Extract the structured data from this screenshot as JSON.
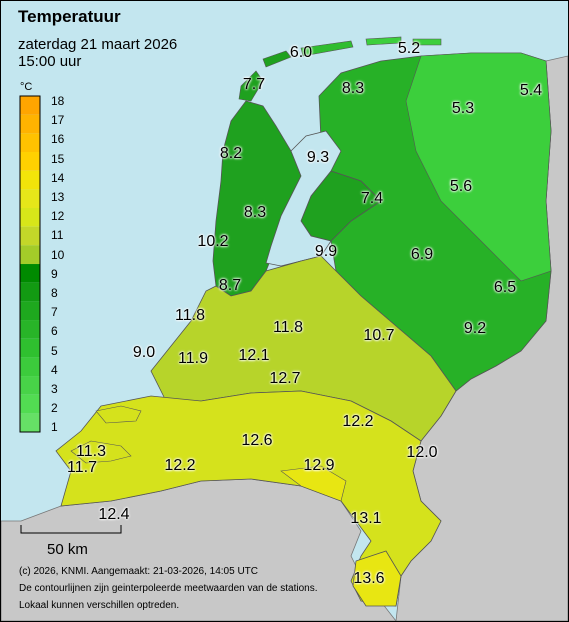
{
  "header": {
    "title": "Temperatuur",
    "date": "zaterdag 21 maart 2026",
    "time": "15:00 uur"
  },
  "legend": {
    "unit": "°C",
    "labels": [
      "18",
      "17",
      "16",
      "15",
      "14",
      "13",
      "12",
      "11",
      "10",
      "9",
      "8",
      "7",
      "6",
      "5",
      "4",
      "3",
      "2",
      "1"
    ],
    "colors": [
      "#ffa500",
      "#ffb300",
      "#ffc200",
      "#ffd100",
      "#f2e40a",
      "#e6e619",
      "#d7e619",
      "#c3d729",
      "#a3cc29",
      "#008a00",
      "#129a12",
      "#1ea81e",
      "#28b428",
      "#2fc02f",
      "#3ccb3c",
      "#48d348",
      "#52dc52",
      "#66e066"
    ]
  },
  "scale": {
    "label": "50 km"
  },
  "footer": {
    "line1": "(c) 2026, KNMI. Aangemaakt: 21-03-2026, 14:05 UTC",
    "line2": "De contourlijnen zijn geinterpoleerde meetwaarden van de stations.",
    "line3": "Lokaal kunnen verschillen optreden."
  },
  "stations": [
    "6.0",
    "5.2",
    "7.7",
    "8.3",
    "5.4",
    "5.3",
    "8.2",
    "9.3",
    "5.6",
    "7.4",
    "8.3",
    "10.2",
    "9.9",
    "6.9",
    "6.5",
    "8.7",
    "11.8",
    "11.8",
    "10.7",
    "9.2",
    "9.0",
    "11.9",
    "12.1",
    "12.7",
    "12.2",
    "12.6",
    "12.0",
    "11.3",
    "11.7",
    "12.2",
    "12.9",
    "12.4",
    "13.1",
    "13.6"
  ]
}
